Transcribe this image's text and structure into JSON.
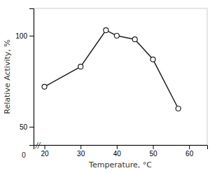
{
  "chart_data": {
    "type": "line",
    "x": [
      20,
      30,
      37,
      40,
      45,
      50,
      57
    ],
    "values": [
      72,
      83,
      103,
      100,
      98,
      87,
      60
    ],
    "xlim": [
      17,
      65
    ],
    "ylim": [
      40,
      115
    ],
    "xticks": [
      20,
      30,
      40,
      50,
      60
    ],
    "yticks": [
      50,
      100
    ],
    "x_label": "Temperature,  °C",
    "y_label": "Relative Activity, %",
    "color": "#222222",
    "marker": "circle",
    "grid": false,
    "annotations": [
      {
        "text": "0"
      },
      {
        "text": "//"
      }
    ]
  }
}
